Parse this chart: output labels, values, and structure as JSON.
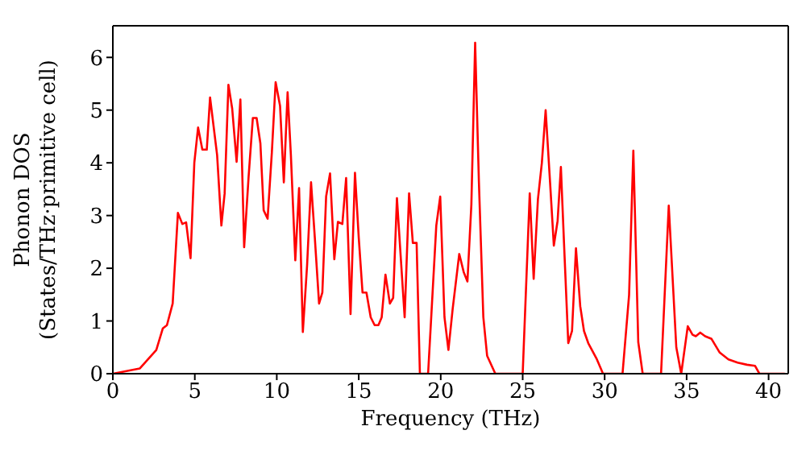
{
  "chart_data": {
    "type": "line",
    "xlabel": "Frequency (THz)",
    "ylabel": "Phonon DOS\n(States/THz·primitive cell)",
    "x": [
      0,
      1.65,
      2.65,
      3.05,
      3.3,
      3.65,
      3.97,
      4.24,
      4.47,
      4.74,
      4.97,
      5.2,
      5.46,
      5.73,
      5.93,
      6.36,
      6.62,
      6.82,
      7.05,
      7.28,
      7.55,
      7.78,
      8.01,
      8.28,
      8.54,
      8.77,
      9.0,
      9.2,
      9.44,
      9.7,
      9.93,
      10.2,
      10.43,
      10.66,
      10.86,
      11.13,
      11.36,
      11.59,
      11.85,
      12.09,
      12.32,
      12.58,
      12.78,
      13.01,
      13.25,
      13.51,
      13.73,
      14.0,
      14.23,
      14.5,
      14.77,
      15.0,
      15.23,
      15.47,
      15.73,
      15.97,
      16.2,
      16.4,
      16.63,
      16.9,
      17.1,
      17.33,
      17.57,
      17.8,
      18.07,
      18.3,
      18.53,
      18.73,
      19.23,
      19.73,
      19.97,
      20.23,
      20.47,
      20.73,
      21.13,
      21.4,
      21.63,
      21.87,
      22.1,
      22.33,
      22.6,
      22.83,
      23.33,
      25.0,
      25.43,
      25.67,
      25.93,
      26.17,
      26.4,
      26.67,
      26.9,
      27.13,
      27.33,
      27.52,
      27.78,
      28.01,
      28.25,
      28.51,
      28.74,
      29.0,
      29.5,
      29.9,
      31.09,
      31.49,
      31.75,
      32.05,
      32.32,
      33.44,
      33.91,
      34.37,
      34.67,
      35.07,
      35.36,
      35.56,
      35.83,
      36.13,
      36.52,
      37.02,
      37.55,
      38.11,
      38.68,
      39.17,
      39.44,
      40.99
    ],
    "series": [
      {
        "color": "#ff0000",
        "values": [
          0,
          0.1,
          0.45,
          0.86,
          0.92,
          1.33,
          3.05,
          2.84,
          2.87,
          2.19,
          4.0,
          4.67,
          4.25,
          4.25,
          5.24,
          4.15,
          2.81,
          3.42,
          5.48,
          5.03,
          4.02,
          5.2,
          2.4,
          3.73,
          4.85,
          4.85,
          4.37,
          3.1,
          2.94,
          4.2,
          5.53,
          5.08,
          3.63,
          5.34,
          4.15,
          2.15,
          3.52,
          0.79,
          2.06,
          3.63,
          2.58,
          1.33,
          1.54,
          3.36,
          3.8,
          2.17,
          2.88,
          2.84,
          3.71,
          1.13,
          3.81,
          2.58,
          1.54,
          1.54,
          1.07,
          0.92,
          0.92,
          1.07,
          1.88,
          1.33,
          1.44,
          3.33,
          2.17,
          1.07,
          3.42,
          2.48,
          2.48,
          0,
          0,
          2.81,
          3.36,
          1.07,
          0.45,
          1.23,
          2.27,
          1.93,
          1.75,
          3.21,
          6.28,
          3.63,
          1.07,
          0.34,
          0,
          0,
          3.42,
          1.8,
          3.31,
          4.0,
          5.0,
          3.63,
          2.43,
          2.9,
          3.92,
          2.48,
          0.58,
          0.81,
          2.38,
          1.28,
          0.81,
          0.58,
          0.29,
          0,
          0,
          1.49,
          4.23,
          0.6,
          0,
          0,
          3.19,
          0.5,
          0,
          0.9,
          0.74,
          0.71,
          0.78,
          0.71,
          0.66,
          0.4,
          0.27,
          0.21,
          0.17,
          0.15,
          0,
          0
        ]
      }
    ],
    "xlim": [
      0,
      41.2
    ],
    "xticks": [
      0,
      5,
      10,
      15,
      20,
      25,
      30,
      35,
      40
    ],
    "ylim": [
      0,
      6.6
    ],
    "yticks": [
      0,
      1,
      2,
      3,
      4,
      5,
      6
    ],
    "grid": false,
    "legend": false,
    "marker": "none",
    "line_style": "solid"
  }
}
